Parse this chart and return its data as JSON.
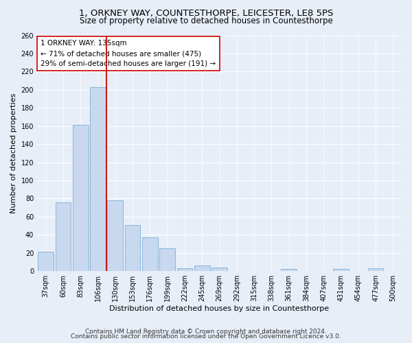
{
  "title_line1": "1, ORKNEY WAY, COUNTESTHORPE, LEICESTER, LE8 5PS",
  "title_line2": "Size of property relative to detached houses in Countesthorpe",
  "xlabel": "Distribution of detached houses by size in Countesthorpe",
  "ylabel": "Number of detached properties",
  "categories": [
    "37sqm",
    "60sqm",
    "83sqm",
    "106sqm",
    "130sqm",
    "153sqm",
    "176sqm",
    "199sqm",
    "222sqm",
    "245sqm",
    "269sqm",
    "292sqm",
    "315sqm",
    "338sqm",
    "361sqm",
    "384sqm",
    "407sqm",
    "431sqm",
    "454sqm",
    "477sqm",
    "500sqm"
  ],
  "values": [
    21,
    76,
    161,
    203,
    78,
    51,
    37,
    25,
    3,
    6,
    4,
    0,
    0,
    0,
    2,
    0,
    0,
    2,
    0,
    3,
    0
  ],
  "bar_color": "#c8d8ee",
  "bar_edge_color": "#7aaed6",
  "vline_color": "#cc0000",
  "vline_index": 4,
  "annotation_text_line1": "1 ORKNEY WAY: 135sqm",
  "annotation_text_line2": "← 71% of detached houses are smaller (475)",
  "annotation_text_line3": "29% of semi-detached houses are larger (191) →",
  "annotation_box_color": "#ffffff",
  "annotation_box_edge": "#cc0000",
  "ylim": [
    0,
    260
  ],
  "yticks": [
    0,
    20,
    40,
    60,
    80,
    100,
    120,
    140,
    160,
    180,
    200,
    220,
    240,
    260
  ],
  "footnote_line1": "Contains HM Land Registry data © Crown copyright and database right 2024.",
  "footnote_line2": "Contains public sector information licensed under the Open Government Licence v3.0.",
  "background_color": "#e8eef8",
  "grid_color": "#ffffff",
  "title_fontsize": 9.5,
  "subtitle_fontsize": 8.5,
  "axis_label_fontsize": 8,
  "tick_fontsize": 7,
  "annotation_fontsize": 7.5,
  "footnote_fontsize": 6.5
}
